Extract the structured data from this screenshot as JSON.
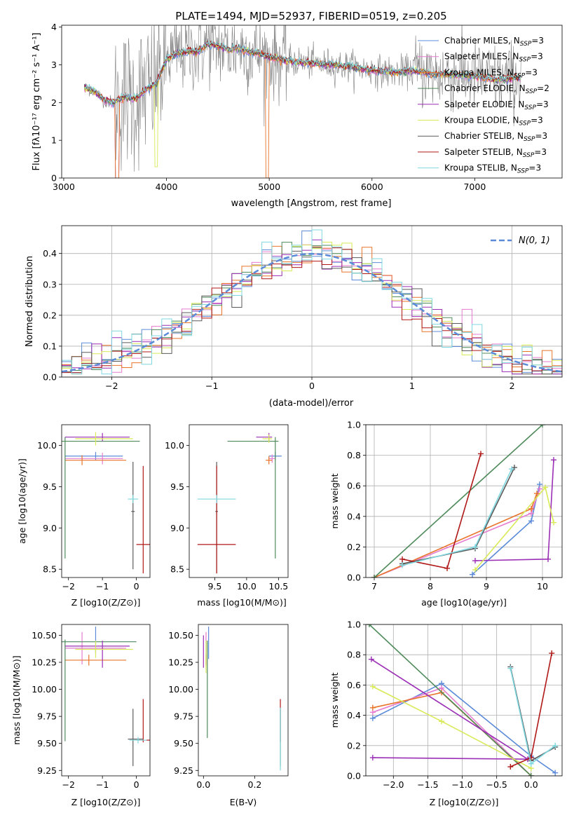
{
  "figure": {
    "title": "PLATE=1494, MJD=52937, FIBERID=0519, z=0.205"
  },
  "chart_data": [
    {
      "id": "spectrum",
      "type": "line",
      "xlabel": "wavelength [Angstrom, rest frame]",
      "ylabel": "Flux [f_λ 10^-17 erg cm^-2 s^-1 A^-1]",
      "xlim": [
        2980,
        7850
      ],
      "ylim": [
        0,
        4.05
      ],
      "xticks": [
        3000,
        4000,
        5000,
        6000,
        7000
      ],
      "yticks": [
        0,
        1,
        2,
        3,
        4
      ],
      "legend_position": "upper right",
      "observed_color": "#808080",
      "continuum_points": [
        [
          3200,
          2.4
        ],
        [
          3300,
          2.3
        ],
        [
          3400,
          2.05
        ],
        [
          3480,
          2.0
        ],
        [
          3600,
          2.15
        ],
        [
          3700,
          2.1
        ],
        [
          3800,
          2.35
        ],
        [
          3900,
          2.5
        ],
        [
          4000,
          3.15
        ],
        [
          4100,
          3.3
        ],
        [
          4200,
          3.35
        ],
        [
          4300,
          3.35
        ],
        [
          4400,
          3.55
        ],
        [
          4500,
          3.5
        ],
        [
          4600,
          3.4
        ],
        [
          4700,
          3.45
        ],
        [
          4800,
          3.35
        ],
        [
          4900,
          3.3
        ],
        [
          5000,
          3.2
        ],
        [
          5200,
          3.1
        ],
        [
          5400,
          3.05
        ],
        [
          5600,
          3.0
        ],
        [
          5800,
          2.95
        ],
        [
          6000,
          2.85
        ],
        [
          6200,
          2.8
        ],
        [
          6400,
          2.85
        ],
        [
          6600,
          2.75
        ],
        [
          6800,
          2.75
        ],
        [
          7000,
          2.7
        ],
        [
          7200,
          2.6
        ],
        [
          7400,
          2.65
        ]
      ],
      "series": [
        {
          "name": "Chabrier MILES, N_SSP=3",
          "label_main": "Chabrier MILES, N",
          "label_sub": "SSP",
          "label_end": "=3",
          "color": "#5b8bd8"
        },
        {
          "name": "Salpeter MILES, N_SSP=3",
          "label_main": "Salpeter MILES, N",
          "label_sub": "SSP",
          "label_end": "=3",
          "color": "#e67ccf"
        },
        {
          "name": "Kroupa MILES, N_SSP=3",
          "label_main": "Kroupa MILES, N",
          "label_sub": "SSP",
          "label_end": "=3",
          "color": "#e8742a"
        },
        {
          "name": "Chabrier ELODIE, N_SSP=2",
          "label_main": "Chabrier ELODIE, N",
          "label_sub": "SSP",
          "label_end": "=2",
          "color": "#4f8a5b"
        },
        {
          "name": "Salpeter ELODIE, N_SSP=3",
          "label_main": "Salpeter ELODIE, N",
          "label_sub": "SSP",
          "label_end": "=3",
          "color": "#9b2fb5"
        },
        {
          "name": "Kroupa ELODIE, N_SSP=3",
          "label_main": "Kroupa ELODIE, N",
          "label_sub": "SSP",
          "label_end": "=3",
          "color": "#d8ea57"
        },
        {
          "name": "Chabrier STELIB, N_SSP=3",
          "label_main": "Chabrier STELIB, N",
          "label_sub": "SSP",
          "label_end": "=3",
          "color": "#5a5a5a"
        },
        {
          "name": "Salpeter STELIB, N_SSP=3",
          "label_main": "Salpeter STELIB, N",
          "label_sub": "SSP",
          "label_end": "=3",
          "color": "#b01818"
        },
        {
          "name": "Kroupa STELIB, N_SSP=3",
          "label_main": "Kroupa STELIB, N",
          "label_sub": "SSP",
          "label_end": "=3",
          "color": "#7fd8e0"
        }
      ]
    },
    {
      "id": "residuals",
      "type": "histogram",
      "xlabel": "(data-model)/error",
      "ylabel": "Normed distribution",
      "xlim": [
        -2.5,
        2.5
      ],
      "ylim": [
        0,
        0.49
      ],
      "xticks": [
        -2,
        -1,
        0,
        1,
        2
      ],
      "yticks": [
        0.0,
        0.1,
        0.2,
        0.3,
        0.4
      ],
      "grid": true,
      "legend_label": "N(0, 1)",
      "bin_width": 0.1
    },
    {
      "id": "age-vs-Z",
      "type": "errorbar",
      "xlabel": "Z [log10(Z/Z⊙)]",
      "ylabel": "age [log10(age/yr)]",
      "xlim": [
        -2.2,
        0.4
      ],
      "ylim": [
        8.4,
        10.25
      ],
      "xticks": [
        -2,
        -1,
        0
      ],
      "yticks": [
        8.5,
        9.0,
        9.5,
        10.0
      ],
      "points": [
        {
          "color": "#5b8bd8",
          "x": -1.2,
          "xerr": [
            0.9,
            0.8
          ],
          "y": 9.87,
          "yerr": [
            0.05,
            0.05
          ]
        },
        {
          "color": "#e67ccf",
          "x": -1.0,
          "xerr": [
            1.1,
            0.6
          ],
          "y": 9.84,
          "yerr": [
            0.07,
            0.07
          ]
        },
        {
          "color": "#e8742a",
          "x": -1.6,
          "xerr": [
            0.5,
            1.3
          ],
          "y": 9.82,
          "yerr": [
            0.06,
            0.06
          ]
        },
        {
          "color": "#4f8a5b",
          "x": -2.1,
          "xerr": [
            0.1,
            2.2
          ],
          "y": 10.05,
          "yerr": [
            1.42,
            0.05
          ]
        },
        {
          "color": "#9b2fb5",
          "x": -1.0,
          "xerr": [
            1.1,
            0.8
          ],
          "y": 10.1,
          "yerr": [
            0.05,
            0.05
          ]
        },
        {
          "color": "#d8ea57",
          "x": -1.2,
          "xerr": [
            0.6,
            1.1
          ],
          "y": 10.08,
          "yerr": [
            0.08,
            0.08
          ]
        },
        {
          "color": "#5a5a5a",
          "x": -0.1,
          "xerr": [
            0.05,
            0.05
          ],
          "y": 9.2,
          "yerr": [
            0.7,
            0.6
          ]
        },
        {
          "color": "#b01818",
          "x": 0.2,
          "xerr": [
            0.2,
            0.2
          ],
          "y": 8.8,
          "yerr": [
            0.35,
            0.95
          ]
        },
        {
          "color": "#7fd8e0",
          "x": -0.1,
          "xerr": [
            0.15,
            0.15
          ],
          "y": 9.35,
          "yerr": [
            0.05,
            0.05
          ]
        }
      ]
    },
    {
      "id": "age-vs-mass",
      "type": "errorbar",
      "xlabel": "mass [log10(M/M⊙)]",
      "xlim": [
        9.1,
        10.65
      ],
      "ylim": [
        8.4,
        10.25
      ],
      "xticks": [
        9.5,
        10.0,
        10.5
      ],
      "yticks": [
        8.5,
        9.0,
        9.5,
        10.0
      ],
      "points": [
        {
          "color": "#5b8bd8",
          "x": 10.45,
          "xerr": [
            0.1,
            0.1
          ],
          "y": 9.87,
          "yerr": [
            0.05,
            0.05
          ]
        },
        {
          "color": "#e67ccf",
          "x": 10.4,
          "xerr": [
            0.05,
            0.05
          ],
          "y": 9.84,
          "yerr": [
            0.05,
            0.05
          ]
        },
        {
          "color": "#e8742a",
          "x": 10.35,
          "xerr": [
            0.05,
            0.05
          ],
          "y": 9.82,
          "yerr": [
            0.05,
            0.05
          ]
        },
        {
          "color": "#4f8a5b",
          "x": 10.45,
          "xerr": [
            0.75,
            0.05
          ],
          "y": 10.05,
          "yerr": [
            1.42,
            0.05
          ]
        },
        {
          "color": "#9b2fb5",
          "x": 10.35,
          "xerr": [
            0.2,
            0.05
          ],
          "y": 10.1,
          "yerr": [
            0.05,
            0.05
          ]
        },
        {
          "color": "#d8ea57",
          "x": 10.35,
          "xerr": [
            0.1,
            0.05
          ],
          "y": 10.08,
          "yerr": [
            0.05,
            0.05
          ]
        },
        {
          "color": "#5a5a5a",
          "x": 9.53,
          "xerr": [
            0.02,
            0.02
          ],
          "y": 9.2,
          "yerr": [
            0.75,
            0.6
          ]
        },
        {
          "color": "#b01818",
          "x": 9.53,
          "xerr": [
            0.3,
            0.3
          ],
          "y": 8.8,
          "yerr": [
            0.35,
            0.95
          ]
        },
        {
          "color": "#7fd8e0",
          "x": 9.53,
          "xerr": [
            0.3,
            0.3
          ],
          "y": 9.35,
          "yerr": [
            0.05,
            0.05
          ]
        }
      ]
    },
    {
      "id": "weight-vs-age",
      "type": "line",
      "xlabel": "age [log10(age/yr)]",
      "ylabel": "mass weight",
      "xlim": [
        6.85,
        10.35
      ],
      "ylim": [
        0,
        1.0
      ],
      "xticks": [
        7,
        8,
        9,
        10
      ],
      "yticks": [
        0.0,
        0.2,
        0.4,
        0.6,
        0.8,
        1.0
      ],
      "grid": true,
      "series": [
        {
          "color": "#5b8bd8",
          "points": [
            [
              8.75,
              0.02
            ],
            [
              9.8,
              0.37
            ],
            [
              9.95,
              0.61
            ]
          ]
        },
        {
          "color": "#e67ccf",
          "points": [
            [
              7.0,
              0.0
            ],
            [
              9.8,
              0.42
            ],
            [
              9.95,
              0.58
            ]
          ]
        },
        {
          "color": "#e8742a",
          "points": [
            [
              7.0,
              0.0
            ],
            [
              9.8,
              0.45
            ],
            [
              9.9,
              0.55
            ]
          ]
        },
        {
          "color": "#4f8a5b",
          "points": [
            [
              7.0,
              0.0
            ],
            [
              10.0,
              1.0
            ]
          ]
        },
        {
          "color": "#9b2fb5",
          "points": [
            [
              8.8,
              0.11
            ],
            [
              10.1,
              0.12
            ],
            [
              10.2,
              0.77
            ]
          ]
        },
        {
          "color": "#d8ea57",
          "points": [
            [
              8.8,
              0.05
            ],
            [
              10.05,
              0.59
            ],
            [
              10.2,
              0.36
            ]
          ]
        },
        {
          "color": "#5a5a5a",
          "points": [
            [
              7.5,
              0.09
            ],
            [
              8.8,
              0.19
            ],
            [
              9.5,
              0.72
            ]
          ]
        },
        {
          "color": "#b01818",
          "points": [
            [
              7.5,
              0.12
            ],
            [
              8.3,
              0.06
            ],
            [
              8.9,
              0.81
            ]
          ]
        },
        {
          "color": "#7fd8e0",
          "points": [
            [
              7.5,
              0.08
            ],
            [
              8.8,
              0.2
            ],
            [
              9.45,
              0.71
            ]
          ]
        }
      ]
    },
    {
      "id": "mass-vs-Z",
      "type": "errorbar",
      "xlabel": "Z [log10(Z/Z⊙)]",
      "ylabel": "mass [log10(M/M⊙)]",
      "xlim": [
        -2.2,
        0.4
      ],
      "ylim": [
        9.2,
        10.6
      ],
      "xticks": [
        -2,
        -1,
        0
      ],
      "yticks": [
        9.25,
        9.5,
        9.75,
        10.0,
        10.25,
        10.5
      ],
      "points": [
        {
          "color": "#5b8bd8",
          "x": -1.2,
          "xerr": [
            0.9,
            0.8
          ],
          "y": 10.38,
          "yerr": [
            0.05,
            0.2
          ]
        },
        {
          "color": "#e67ccf",
          "x": -1.6,
          "xerr": [
            0.5,
            1.3
          ],
          "y": 10.38,
          "yerr": [
            0.15,
            0.15
          ]
        },
        {
          "color": "#e8742a",
          "x": -1.4,
          "xerr": [
            0.7,
            1.1
          ],
          "y": 10.27,
          "yerr": [
            0.05,
            0.05
          ]
        },
        {
          "color": "#4f8a5b",
          "x": -2.1,
          "xerr": [
            0.1,
            2.1
          ],
          "y": 10.44,
          "yerr": [
            0.92,
            0.02
          ]
        },
        {
          "color": "#9b2fb5",
          "x": -1.0,
          "xerr": [
            1.1,
            0.8
          ],
          "y": 10.4,
          "yerr": [
            0.2,
            0.05
          ]
        },
        {
          "color": "#d8ea57",
          "x": -1.2,
          "xerr": [
            0.6,
            1.1
          ],
          "y": 10.37,
          "yerr": [
            0.08,
            0.08
          ]
        },
        {
          "color": "#5a5a5a",
          "x": -0.1,
          "xerr": [
            0.15,
            0.3
          ],
          "y": 9.54,
          "yerr": [
            0.25,
            0.28
          ]
        },
        {
          "color": "#b01818",
          "x": 0.2,
          "xerr": [
            0.2,
            0.2
          ],
          "y": 9.53,
          "yerr": [
            0.02,
            0.38
          ]
        },
        {
          "color": "#7fd8e0",
          "x": 0.05,
          "xerr": [
            0.25,
            0.25
          ],
          "y": 9.53,
          "yerr": [
            0.03,
            0.03
          ]
        }
      ]
    },
    {
      "id": "mass-vs-EBV",
      "type": "errorbar",
      "xlabel": "E(B-V)",
      "xlim": [
        -0.02,
        0.33
      ],
      "ylim": [
        9.2,
        10.6
      ],
      "xticks": [
        0.0,
        0.2
      ],
      "yticks": [
        9.25,
        9.5,
        9.75,
        10.0,
        10.25,
        10.5
      ],
      "points": [
        {
          "color": "#5b8bd8",
          "x": 0.02,
          "y": 10.38,
          "yerr": [
            0.1,
            0.2
          ]
        },
        {
          "color": "#e67ccf",
          "x": 0.01,
          "y": 10.38,
          "yerr": [
            0.15,
            0.15
          ]
        },
        {
          "color": "#e8742a",
          "x": 0.01,
          "y": 10.27,
          "yerr": [
            0.05,
            0.05
          ]
        },
        {
          "color": "#4f8a5b",
          "x": 0.015,
          "y": 10.2,
          "yerr": [
            0.65,
            0.25
          ]
        },
        {
          "color": "#9b2fb5",
          "x": 0.0,
          "y": 10.4,
          "yerr": [
            0.2,
            0.1
          ]
        },
        {
          "color": "#d8ea57",
          "x": 0.01,
          "y": 10.3,
          "yerr": [
            0.15,
            0.15
          ]
        },
        {
          "color": "#5a5a5a",
          "x": 0.3,
          "y": 9.54,
          "yerr": [
            0.25,
            0.28
          ]
        },
        {
          "color": "#b01818",
          "x": 0.3,
          "y": 9.53,
          "yerr": [
            0.02,
            0.38
          ]
        },
        {
          "color": "#7fd8e0",
          "x": 0.3,
          "y": 9.53,
          "yerr": [
            0.28,
            0.3
          ]
        }
      ]
    },
    {
      "id": "weight-vs-Z",
      "type": "line",
      "xlabel": "Z [log10(Z/Z⊙)]",
      "ylabel": "mass weight",
      "xlim": [
        -2.4,
        0.45
      ],
      "ylim": [
        0,
        1.0
      ],
      "xticks": [
        -2.0,
        -1.5,
        -1.0,
        -0.5,
        0.0
      ],
      "yticks": [
        0.0,
        0.2,
        0.4,
        0.6,
        0.8,
        1.0
      ],
      "grid": true,
      "series": [
        {
          "color": "#5b8bd8",
          "points": [
            [
              -2.3,
              0.38
            ],
            [
              -1.3,
              0.61
            ],
            [
              0.0,
              0.13
            ],
            [
              0.35,
              0.02
            ]
          ]
        },
        {
          "color": "#e67ccf",
          "points": [
            [
              -2.3,
              0.42
            ],
            [
              -1.3,
              0.58
            ],
            [
              0.0,
              0.0
            ]
          ]
        },
        {
          "color": "#e8742a",
          "points": [
            [
              -2.3,
              0.45
            ],
            [
              -1.3,
              0.55
            ],
            [
              0.0,
              0.0
            ]
          ]
        },
        {
          "color": "#4f8a5b",
          "points": [
            [
              -2.35,
              1.0
            ],
            [
              0.0,
              0.0
            ]
          ]
        },
        {
          "color": "#9b2fb5",
          "points": [
            [
              -2.3,
              0.12
            ],
            [
              -0.05,
              0.11
            ],
            [
              -2.32,
              0.77
            ]
          ]
        },
        {
          "color": "#d8ea57",
          "points": [
            [
              -2.3,
              0.59
            ],
            [
              -1.3,
              0.36
            ],
            [
              0.0,
              0.05
            ]
          ]
        },
        {
          "color": "#5a5a5a",
          "points": [
            [
              -0.3,
              0.72
            ],
            [
              0.0,
              0.1
            ],
            [
              0.35,
              0.19
            ]
          ]
        },
        {
          "color": "#b01818",
          "points": [
            [
              -0.3,
              0.06
            ],
            [
              0.0,
              0.12
            ],
            [
              0.3,
              0.81
            ]
          ]
        },
        {
          "color": "#7fd8e0",
          "points": [
            [
              -0.3,
              0.71
            ],
            [
              0.0,
              0.08
            ],
            [
              0.35,
              0.2
            ]
          ]
        }
      ]
    }
  ]
}
